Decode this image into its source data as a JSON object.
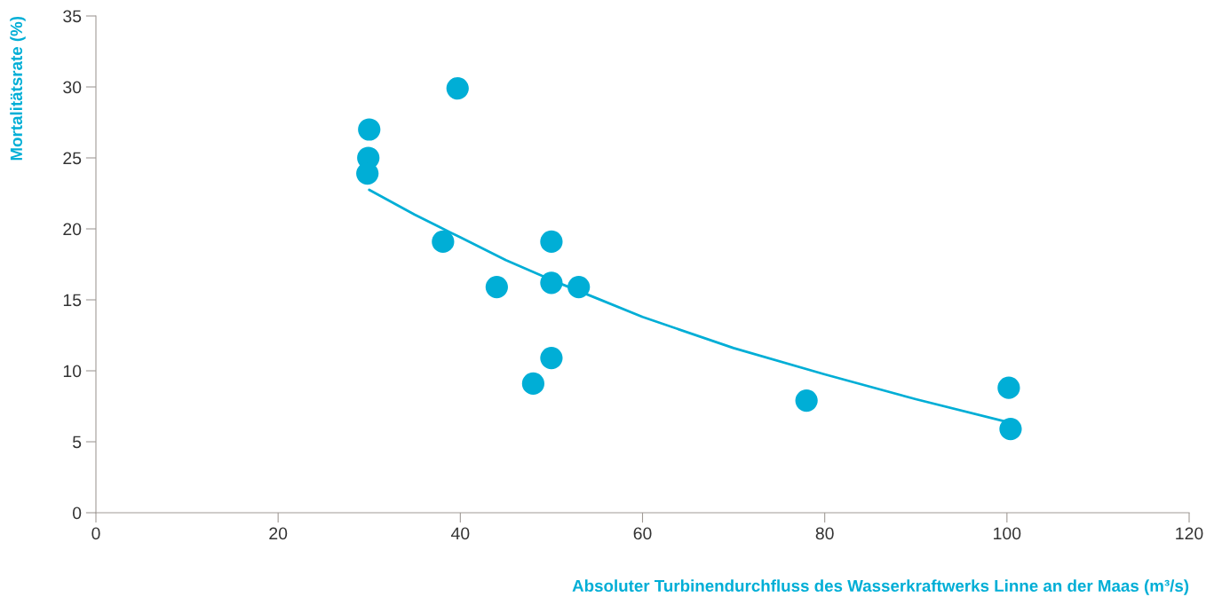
{
  "chart_data": {
    "type": "scatter",
    "xlabel": "Absoluter Turbinendurchfluss des Wasserkraftwerks Linne an der Maas (m³/s)",
    "ylabel": "Mortalitätsrate (%)",
    "xlim": [
      0,
      120
    ],
    "ylim": [
      0,
      35
    ],
    "xticks": [
      0,
      20,
      40,
      60,
      80,
      100,
      120
    ],
    "yticks": [
      0,
      5,
      10,
      15,
      20,
      25,
      30,
      35
    ],
    "series": [
      {
        "color": "#00aed6",
        "marker": "circle",
        "x": [
          30,
          29.9,
          29.8,
          39.7,
          38.1,
          44,
          50,
          50,
          53,
          50,
          48,
          78,
          100.2,
          100.4
        ],
        "values": [
          27,
          25,
          23.9,
          29.9,
          19.1,
          15.9,
          19.1,
          16.2,
          15.9,
          10.9,
          9.1,
          7.9,
          8.8,
          5.9
        ]
      },
      {
        "type": "line",
        "color": "#00aed6",
        "x": [
          30,
          35,
          40,
          45,
          50,
          55,
          60,
          70,
          80,
          90,
          100
        ],
        "values": [
          22.75,
          21,
          19.4,
          17.8,
          16.4,
          15.1,
          13.8,
          11.6,
          9.75,
          8,
          6.4
        ]
      }
    ]
  }
}
